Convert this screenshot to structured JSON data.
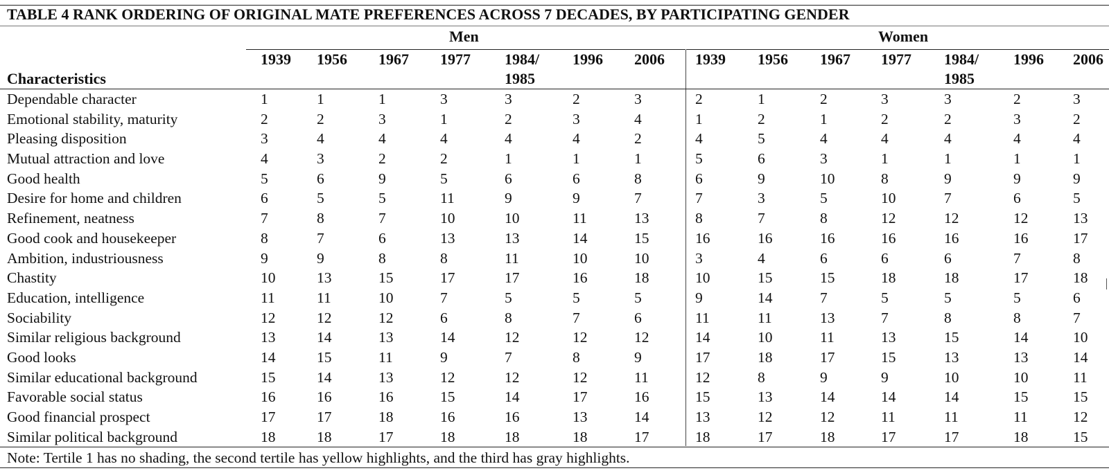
{
  "title": "TABLE 4 RANK ORDERING OF ORIGINAL MATE PREFERENCES ACROSS 7 DECADES, BY PARTICIPATING GENDER",
  "groups": {
    "men": "Men",
    "women": "Women"
  },
  "characteristics_header": "Characteristics",
  "years": [
    "1939",
    "1956",
    "1967",
    "1977",
    "1984/\n1985",
    "1996",
    "2006"
  ],
  "rows": [
    {
      "label": "Dependable character",
      "men": [
        "1",
        "1",
        "1",
        "3",
        "3",
        "2",
        "3"
      ],
      "women": [
        "2",
        "1",
        "2",
        "3",
        "3",
        "2",
        "3"
      ]
    },
    {
      "label": "Emotional stability, maturity",
      "men": [
        "2",
        "2",
        "3",
        "1",
        "2",
        "3",
        "4"
      ],
      "women": [
        "1",
        "2",
        "1",
        "2",
        "2",
        "3",
        "2"
      ]
    },
    {
      "label": "Pleasing disposition",
      "men": [
        "3",
        "4",
        "4",
        "4",
        "4",
        "4",
        "2"
      ],
      "women": [
        "4",
        "5",
        "4",
        "4",
        "4",
        "4",
        "4"
      ]
    },
    {
      "label": "Mutual attraction and love",
      "men": [
        "4",
        "3",
        "2",
        "2",
        "1",
        "1",
        "1"
      ],
      "women": [
        "5",
        "6",
        "3",
        "1",
        "1",
        "1",
        "1"
      ]
    },
    {
      "label": "Good health",
      "men": [
        "5",
        "6",
        "9",
        "5",
        "6",
        "6",
        "8"
      ],
      "women": [
        "6",
        "9",
        "10",
        "8",
        "9",
        "9",
        "9"
      ]
    },
    {
      "label": "Desire for home and children",
      "men": [
        "6",
        "5",
        "5",
        "11",
        "9",
        "9",
        "7"
      ],
      "women": [
        "7",
        "3",
        "5",
        "10",
        "7",
        "6",
        "5"
      ]
    },
    {
      "label": "Refinement, neatness",
      "men": [
        "7",
        "8",
        "7",
        "10",
        "10",
        "11",
        "13"
      ],
      "women": [
        "8",
        "7",
        "8",
        "12",
        "12",
        "12",
        "13"
      ]
    },
    {
      "label": "Good cook and housekeeper",
      "men": [
        "8",
        "7",
        "6",
        "13",
        "13",
        "14",
        "15"
      ],
      "women": [
        "16",
        "16",
        "16",
        "16",
        "16",
        "16",
        "17"
      ]
    },
    {
      "label": "Ambition, industriousness",
      "men": [
        "9",
        "9",
        "8",
        "8",
        "11",
        "10",
        "10"
      ],
      "women": [
        "3",
        "4",
        "6",
        "6",
        "6",
        "7",
        "8"
      ]
    },
    {
      "label": "Chastity",
      "men": [
        "10",
        "13",
        "15",
        "17",
        "17",
        "16",
        "18"
      ],
      "women": [
        "10",
        "15",
        "15",
        "18",
        "18",
        "17",
        "18"
      ]
    },
    {
      "label": "Education, intelligence",
      "men": [
        "11",
        "11",
        "10",
        "7",
        "5",
        "5",
        "5"
      ],
      "women": [
        "9",
        "14",
        "7",
        "5",
        "5",
        "5",
        "6"
      ]
    },
    {
      "label": "Sociability",
      "men": [
        "12",
        "12",
        "12",
        "6",
        "8",
        "7",
        "6"
      ],
      "women": [
        "11",
        "11",
        "13",
        "7",
        "8",
        "8",
        "7"
      ]
    },
    {
      "label": "Similar religious background",
      "men": [
        "13",
        "14",
        "13",
        "14",
        "12",
        "12",
        "12"
      ],
      "women": [
        "14",
        "10",
        "11",
        "13",
        "15",
        "14",
        "10"
      ]
    },
    {
      "label": "Good looks",
      "men": [
        "14",
        "15",
        "11",
        "9",
        "7",
        "8",
        "9"
      ],
      "women": [
        "17",
        "18",
        "17",
        "15",
        "13",
        "13",
        "14"
      ]
    },
    {
      "label": "Similar educational background",
      "men": [
        "15",
        "14",
        "13",
        "12",
        "12",
        "12",
        "11"
      ],
      "women": [
        "12",
        "8",
        "9",
        "9",
        "10",
        "10",
        "11"
      ]
    },
    {
      "label": "Favorable social status",
      "men": [
        "16",
        "16",
        "16",
        "15",
        "14",
        "17",
        "16"
      ],
      "women": [
        "15",
        "13",
        "14",
        "14",
        "14",
        "15",
        "15"
      ]
    },
    {
      "label": "Good financial prospect",
      "men": [
        "17",
        "17",
        "18",
        "16",
        "16",
        "13",
        "14"
      ],
      "women": [
        "13",
        "12",
        "12",
        "11",
        "11",
        "11",
        "12"
      ]
    },
    {
      "label": "Similar political background",
      "men": [
        "18",
        "18",
        "17",
        "18",
        "18",
        "18",
        "17"
      ],
      "women": [
        "18",
        "17",
        "18",
        "17",
        "17",
        "18",
        "15"
      ]
    }
  ],
  "note": "Note: Tertile 1 has no shading, the second tertile has yellow highlights, and the third has gray highlights."
}
